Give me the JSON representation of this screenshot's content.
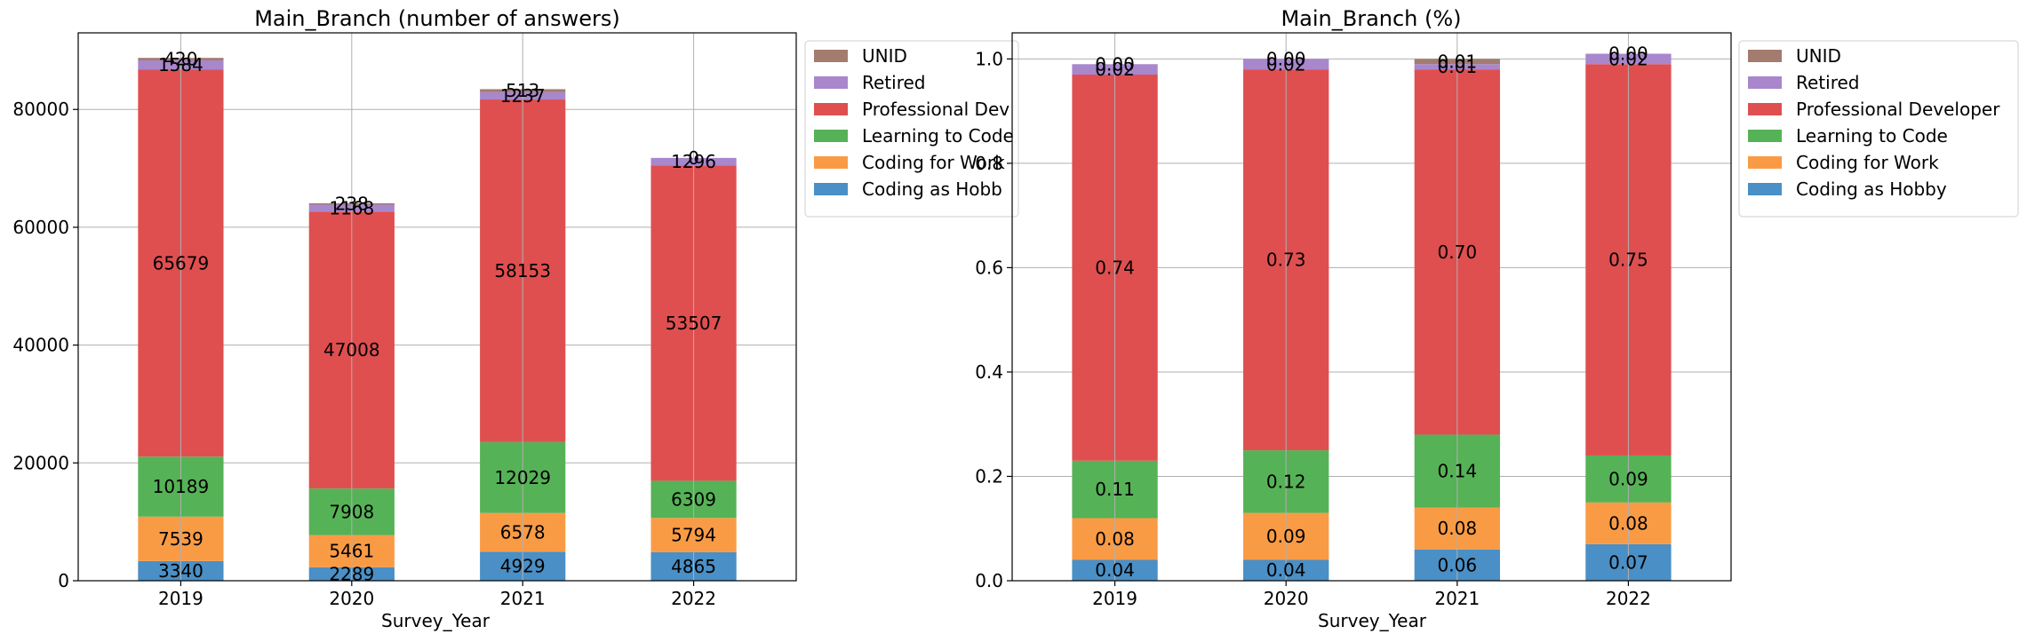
{
  "colors": {
    "Coding as Hobby": "#4a8fc5",
    "Coding for Work": "#f99b45",
    "Learning to Code": "#56b256",
    "Professional Developer": "#df4f50",
    "Retired": "#a887cd",
    "UNID": "#a37c6f"
  },
  "chart_data": [
    {
      "type": "bar",
      "stacked": true,
      "title": "Main_Branch (number of answers)",
      "xlabel": "Survey_Year",
      "ylabel": "",
      "categories": [
        "2019",
        "2020",
        "2021",
        "2022"
      ],
      "ylim": [
        0,
        93000
      ],
      "yticks": [
        "0",
        "20000",
        "40000",
        "60000",
        "80000"
      ],
      "ytick_values": [
        0,
        20000,
        40000,
        60000,
        80000
      ],
      "grid": true,
      "legend_position": "right-outside-top",
      "legend_labels": [
        "UNID",
        "Retired",
        "Professional Dev",
        "Learning to Code",
        "Coding for Work",
        "Coding as Hobb"
      ],
      "series": [
        {
          "name": "Coding as Hobby",
          "values": [
            3340,
            2289,
            4929,
            4865
          ],
          "labels": [
            "3340",
            "2289",
            "4929",
            "4865"
          ]
        },
        {
          "name": "Coding for Work",
          "values": [
            7539,
            5461,
            6578,
            5794
          ],
          "labels": [
            "7539",
            "5461",
            "6578",
            "5794"
          ]
        },
        {
          "name": "Learning to Code",
          "values": [
            10189,
            7908,
            12029,
            6309
          ],
          "labels": [
            "10189",
            "7908",
            "12029",
            "6309"
          ]
        },
        {
          "name": "Professional Developer",
          "values": [
            65679,
            47008,
            58153,
            53507
          ],
          "labels": [
            "65679",
            "47008",
            "58153",
            "53507"
          ]
        },
        {
          "name": "Retired",
          "values": [
            1584,
            1168,
            1237,
            1296
          ],
          "labels": [
            "1584",
            "1168",
            "1237",
            "1296"
          ]
        },
        {
          "name": "UNID",
          "values": [
            420,
            238,
            513,
            0
          ],
          "labels": [
            "420",
            "238",
            "513",
            "0"
          ]
        }
      ]
    },
    {
      "type": "bar",
      "stacked": true,
      "title": "Main_Branch (%)",
      "xlabel": "Survey_Year",
      "ylabel": "",
      "categories": [
        "2019",
        "2020",
        "2021",
        "2022"
      ],
      "ylim": [
        0,
        1.05
      ],
      "yticks": [
        "0.0",
        "0.2",
        "0.4",
        "0.6",
        "0.8",
        "1.0"
      ],
      "ytick_values": [
        0,
        0.2,
        0.4,
        0.6,
        0.8,
        1.0
      ],
      "grid": true,
      "legend_position": "right-outside-top",
      "legend_labels": [
        "UNID",
        "Retired",
        "Professional Developer",
        "Learning to Code",
        "Coding for Work",
        "Coding as Hobby"
      ],
      "series": [
        {
          "name": "Coding as Hobby",
          "values": [
            0.04,
            0.04,
            0.06,
            0.07
          ],
          "labels": [
            "0.04",
            "0.04",
            "0.06",
            "0.07"
          ]
        },
        {
          "name": "Coding for Work",
          "values": [
            0.08,
            0.09,
            0.08,
            0.08
          ],
          "labels": [
            "0.08",
            "0.09",
            "0.08",
            "0.08"
          ]
        },
        {
          "name": "Learning to Code",
          "values": [
            0.11,
            0.12,
            0.14,
            0.09
          ],
          "labels": [
            "0.11",
            "0.12",
            "0.14",
            "0.09"
          ]
        },
        {
          "name": "Professional Developer",
          "values": [
            0.74,
            0.73,
            0.7,
            0.75
          ],
          "labels": [
            "0.74",
            "0.73",
            "0.70",
            "0.75"
          ]
        },
        {
          "name": "Retired",
          "values": [
            0.02,
            0.02,
            0.01,
            0.02
          ],
          "labels": [
            "0.02",
            "0.02",
            "0.01",
            "0.02"
          ]
        },
        {
          "name": "UNID",
          "values": [
            0.0,
            0.0,
            0.01,
            0.0
          ],
          "labels": [
            "0.00",
            "0.00",
            "0.01",
            "0.00"
          ]
        }
      ]
    }
  ]
}
